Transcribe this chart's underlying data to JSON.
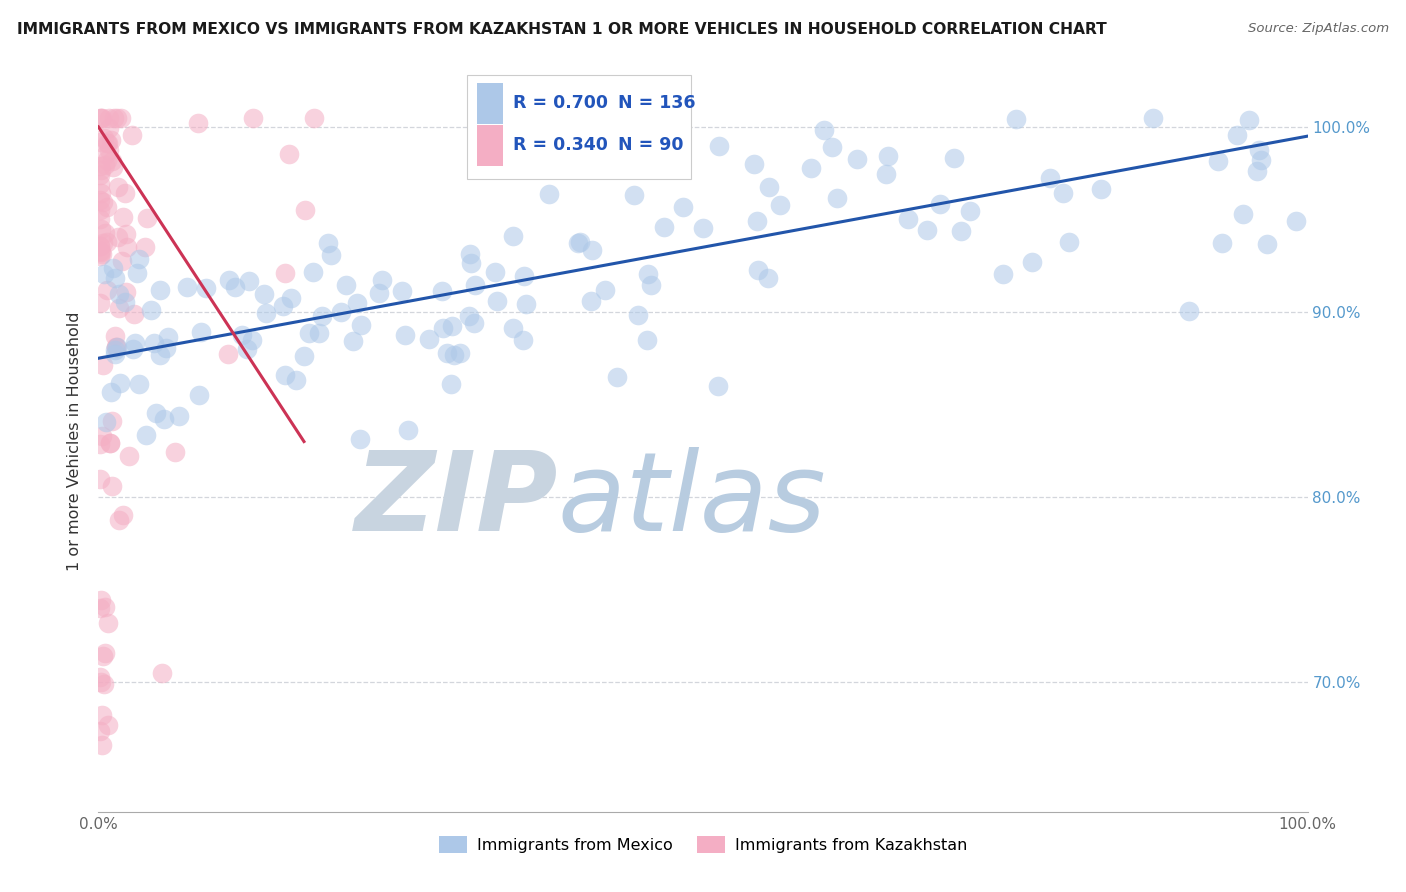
{
  "title": "IMMIGRANTS FROM MEXICO VS IMMIGRANTS FROM KAZAKHSTAN 1 OR MORE VEHICLES IN HOUSEHOLD CORRELATION CHART",
  "source": "Source: ZipAtlas.com",
  "ylabel": "1 or more Vehicles in Household",
  "legend_blue_R": "0.700",
  "legend_blue_N": "136",
  "legend_pink_R": "0.340",
  "legend_pink_N": "90",
  "legend_label_blue": "Immigrants from Mexico",
  "legend_label_pink": "Immigrants from Kazakhstan",
  "blue_color": "#adc8e8",
  "blue_edge": "#adc8e8",
  "pink_color": "#f4aec4",
  "pink_edge": "#f4aec4",
  "trendline_blue": "#2255aa",
  "trendline_pink": "#cc3355",
  "background_color": "#ffffff",
  "watermark_zip_color": "#c8d4e0",
  "watermark_atlas_color": "#b8cce0",
  "grid_color": "#c8ccd4",
  "right_tick_color": "#5599cc",
  "xlim": [
    0.0,
    1.0
  ],
  "ylim": [
    0.63,
    1.03
  ],
  "yticks": [
    0.7,
    0.8,
    0.9,
    1.0
  ],
  "ytick_labels": [
    "70.0%",
    "80.0%",
    "90.0%",
    "100.0%"
  ]
}
